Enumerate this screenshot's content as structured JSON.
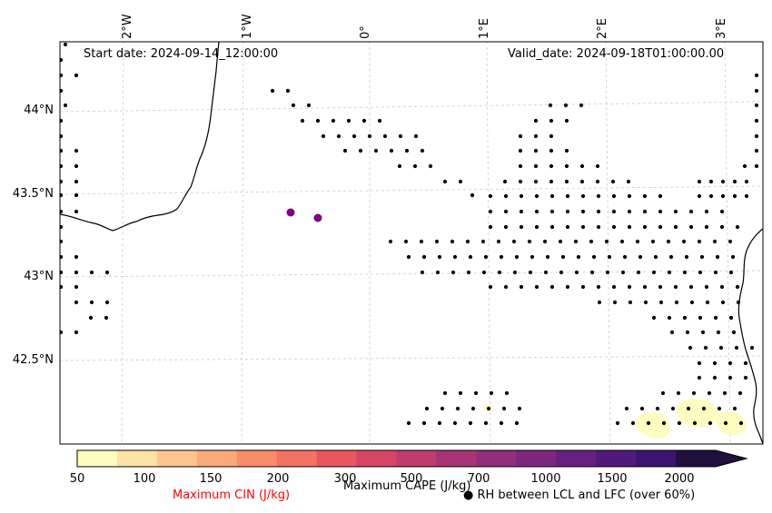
{
  "map": {
    "start_date": "Start date: 2024-09-14_12:00:00",
    "valid_date": "Valid_date: 2024-09-18T01:00:00.00",
    "lon_labels": [
      "2°W",
      "1°W",
      "0°",
      "1°E",
      "2°E",
      "3°E"
    ],
    "lat_labels": [
      "44°N",
      "43.5°N",
      "43°N",
      "42.5°N"
    ],
    "point_markers_color": "#800080",
    "coastline_color": "#000000",
    "grid_color": "#cccccc"
  },
  "colorbar": {
    "ticks": [
      "50",
      "100",
      "150",
      "200",
      "300",
      "500",
      "700",
      "1000",
      "1500",
      "2000"
    ],
    "colors": [
      "#fffcc0",
      "#fee3a6",
      "#fdc58d",
      "#fba97a",
      "#f98c6a",
      "#f47262",
      "#e8575e",
      "#d54666",
      "#bf3b70",
      "#a83478",
      "#922e7c",
      "#7c2780",
      "#67207f",
      "#521a7c",
      "#3b1471",
      "#210f3e"
    ],
    "cin_label": "Maximum CIN (J/kg)",
    "cin_label_color": "#ff0000",
    "cape_label": "Maximum CAPE (J/kg)",
    "rh_label": "● RH between LCL and LFC (over 60%)"
  }
}
